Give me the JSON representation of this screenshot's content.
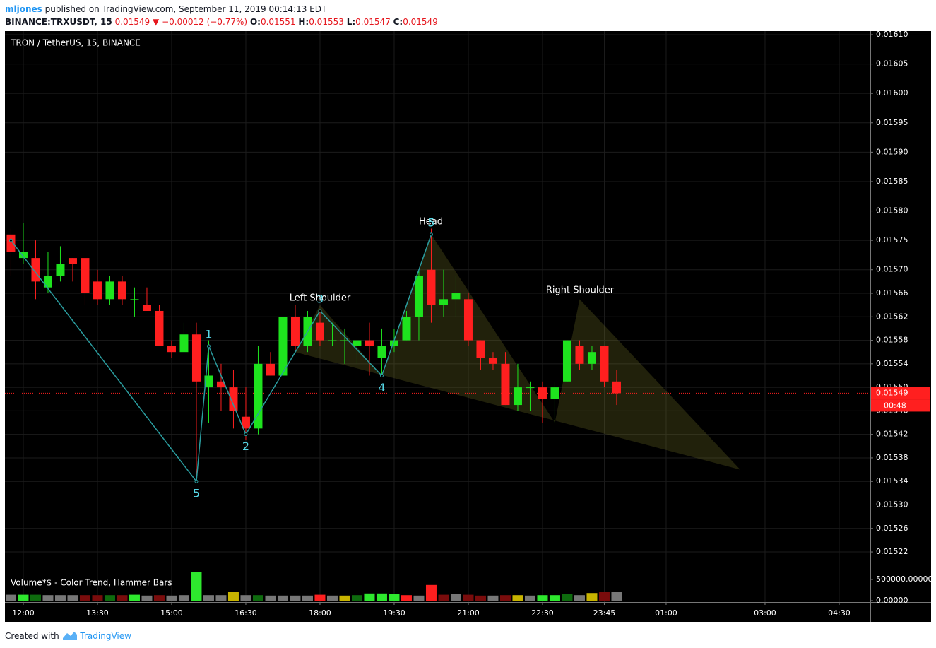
{
  "header": {
    "author": "mljones",
    "published": "published on TradingView.com, September 11, 2019 00:14:13 EDT",
    "symbol": "BINANCE:TRXUSDT, 15",
    "last": "0.01549",
    "arrow": "▼",
    "change": "−0.00012 (−0.77%)",
    "ohlc": [
      {
        "label": "O:",
        "value": "0.01551"
      },
      {
        "label": "H:",
        "value": "0.01553"
      },
      {
        "label": "L:",
        "value": "0.01547"
      },
      {
        "label": "C:",
        "value": "0.01549"
      }
    ]
  },
  "footer": {
    "text": "Created with",
    "brand": "TradingView"
  },
  "chart_data": {
    "type": "candlestick",
    "title": "TRON / TetherUS, 15, BINANCE",
    "up_color": "#1ee31e",
    "down_color": "#ff1f1f",
    "grid": true,
    "x": [
      11.75,
      12,
      12.25,
      12.5,
      12.75,
      13,
      13.25,
      13.5,
      13.75,
      14,
      14.25,
      14.5,
      14.75,
      15,
      15.25,
      15.5,
      15.75,
      16,
      16.25,
      16.5,
      16.75,
      17,
      17.25,
      17.5,
      17.75,
      18,
      18.25,
      18.5,
      18.75,
      19,
      19.25,
      19.5,
      19.75,
      20,
      20.25,
      20.5,
      20.75,
      21,
      21.25,
      21.5,
      21.75,
      22,
      22.25,
      22.5,
      22.75,
      23,
      23.25,
      23.5,
      23.75,
      24
    ],
    "open": [
      0.01576,
      0.01572,
      0.01572,
      0.01567,
      0.01569,
      0.01572,
      0.01572,
      0.01568,
      0.01565,
      0.01568,
      0.01565,
      0.01564,
      0.01563,
      0.01557,
      0.01556,
      0.01559,
      0.0155,
      0.01551,
      0.0155,
      0.01545,
      0.01543,
      0.01554,
      0.01552,
      0.01562,
      0.01557,
      0.01561,
      0.01558,
      0.01558,
      0.01557,
      0.01558,
      0.01555,
      0.01557,
      0.01558,
      0.01562,
      0.0157,
      0.01564,
      0.01565,
      0.01565,
      0.01558,
      0.01555,
      0.01554,
      0.01547,
      0.0155,
      0.0155,
      0.01548,
      0.01551,
      0.01557,
      0.01554,
      0.01557,
      0.01551
    ],
    "high": [
      0.01577,
      0.01578,
      0.01575,
      0.01573,
      0.01574,
      0.01572,
      0.01572,
      0.0157,
      0.01569,
      0.01569,
      0.01567,
      0.01567,
      0.01564,
      0.01558,
      0.01561,
      0.01561,
      0.01558,
      0.01554,
      0.01553,
      0.0155,
      0.01557,
      0.01556,
      0.01562,
      0.01564,
      0.01563,
      0.01563,
      0.01561,
      0.0156,
      0.01558,
      0.01561,
      0.0156,
      0.0156,
      0.01563,
      0.0157,
      0.01577,
      0.0157,
      0.01569,
      0.01566,
      0.01558,
      0.01556,
      0.01556,
      0.01554,
      0.01551,
      0.01551,
      0.01551,
      0.01558,
      0.01558,
      0.01557,
      0.01557,
      0.01553
    ],
    "low": [
      0.01569,
      0.01571,
      0.01565,
      0.01566,
      0.01568,
      0.01568,
      0.01564,
      0.01564,
      0.01564,
      0.01564,
      0.01562,
      0.01563,
      0.01557,
      0.01555,
      0.01556,
      0.01534,
      0.01544,
      0.01546,
      0.01543,
      0.01541,
      0.01542,
      0.01552,
      0.01552,
      0.01556,
      0.01556,
      0.01557,
      0.01557,
      0.01554,
      0.01554,
      0.01552,
      0.01552,
      0.01556,
      0.01558,
      0.01558,
      0.01561,
      0.01562,
      0.01562,
      0.01557,
      0.01553,
      0.01553,
      0.01547,
      0.01546,
      0.01546,
      0.01544,
      0.01544,
      0.01551,
      0.01553,
      0.01553,
      0.0155,
      0.01547
    ],
    "close": [
      0.01573,
      0.01573,
      0.01568,
      0.01569,
      0.01571,
      0.01571,
      0.01566,
      0.01565,
      0.01568,
      0.01565,
      0.01565,
      0.01563,
      0.01557,
      0.01556,
      0.01559,
      0.01551,
      0.01552,
      0.0155,
      0.01546,
      0.01543,
      0.01554,
      0.01552,
      0.01562,
      0.01557,
      0.01562,
      0.01558,
      0.01558,
      0.01558,
      0.01558,
      0.01557,
      0.01557,
      0.01558,
      0.01562,
      0.01569,
      0.01564,
      0.01565,
      0.01566,
      0.01558,
      0.01555,
      0.01554,
      0.01547,
      0.0155,
      0.0155,
      0.01548,
      0.0155,
      0.01558,
      0.01554,
      0.01556,
      0.01551,
      0.01549
    ],
    "xlim": [
      11.629,
      29.129
    ],
    "ylim": [
      0.01519,
      0.016106
    ],
    "xticks": [
      {
        "value": 12,
        "label": "12:00"
      },
      {
        "value": 13.5,
        "label": "13:30"
      },
      {
        "value": 15,
        "label": "15:00"
      },
      {
        "value": 16.5,
        "label": "16:30"
      },
      {
        "value": 18,
        "label": "18:00"
      },
      {
        "value": 19.5,
        "label": "19:30"
      },
      {
        "value": 21,
        "label": "21:00"
      },
      {
        "value": 22.5,
        "label": "22:30"
      },
      {
        "value": 23.75,
        "label": "23:45"
      },
      {
        "value": 25,
        "label": "01:00"
      },
      {
        "value": 27,
        "label": "03:00"
      },
      {
        "value": 28.5,
        "label": "04:30"
      }
    ],
    "yticks": [
      {
        "value": 0.0161,
        "label": "0.01610"
      },
      {
        "value": 0.01605,
        "label": "0.01605"
      },
      {
        "value": 0.016,
        "label": "0.01600"
      },
      {
        "value": 0.01595,
        "label": "0.01595"
      },
      {
        "value": 0.0159,
        "label": "0.01590"
      },
      {
        "value": 0.01585,
        "label": "0.01585"
      },
      {
        "value": 0.0158,
        "label": "0.01580"
      },
      {
        "value": 0.01575,
        "label": "0.01575"
      },
      {
        "value": 0.0157,
        "label": "0.01570"
      },
      {
        "value": 0.01566,
        "label": "0.01566"
      },
      {
        "value": 0.01562,
        "label": "0.01562"
      },
      {
        "value": 0.01558,
        "label": "0.01558"
      },
      {
        "value": 0.01554,
        "label": "0.01554"
      },
      {
        "value": 0.0155,
        "label": "0.01550"
      },
      {
        "value": 0.01546,
        "label": "0.01546"
      },
      {
        "value": 0.01542,
        "label": "0.01542"
      },
      {
        "value": 0.01538,
        "label": "0.01538"
      },
      {
        "value": 0.01534,
        "label": "0.01534"
      },
      {
        "value": 0.0153,
        "label": "0.01530"
      },
      {
        "value": 0.01526,
        "label": "0.01526"
      },
      {
        "value": 0.01522,
        "label": "0.01522"
      }
    ],
    "last_price": {
      "value": 0.01549,
      "label": "0.01549",
      "countdown": "00:48",
      "color": "#ff1f1f"
    },
    "zigzag": {
      "color": "#2a9d9f",
      "label_color": "#56d7e6",
      "x": [
        11.75,
        15.5,
        15.75,
        16.5,
        18,
        19.25,
        20.25
      ],
      "y": [
        0.01575,
        0.01534,
        0.01557,
        0.01542,
        0.01563,
        0.01552,
        0.01576
      ],
      "labels": [
        null,
        "5",
        "1",
        "2",
        "3",
        "4",
        "5"
      ]
    },
    "pattern": {
      "color": "rgba(120,120,40,0.28)",
      "x": [
        17.5,
        18,
        19.25,
        20.25,
        22.75,
        23.25,
        26.5
      ],
      "y": [
        0.01556,
        0.01564,
        0.01552,
        0.01576,
        0.01544,
        0.01565,
        0.01536
      ],
      "annotations": [
        "Left Shoulder",
        "Head",
        "Right Shoulder"
      ]
    },
    "volume": {
      "title": "Volume*$ - Color Trend, Hammer Bars",
      "ylim": [
        0,
        700000
      ],
      "yticks": [
        {
          "value": 500000,
          "label": "500000.00000"
        },
        {
          "value": 0,
          "label": "0.00000"
        }
      ],
      "values": [
        140000,
        140000,
        140000,
        130000,
        130000,
        130000,
        130000,
        130000,
        130000,
        130000,
        140000,
        120000,
        130000,
        120000,
        130000,
        670000,
        130000,
        130000,
        200000,
        130000,
        130000,
        120000,
        120000,
        120000,
        120000,
        140000,
        120000,
        120000,
        130000,
        170000,
        170000,
        150000,
        130000,
        120000,
        370000,
        140000,
        160000,
        140000,
        120000,
        120000,
        130000,
        130000,
        120000,
        130000,
        130000,
        150000,
        130000,
        180000,
        200000,
        200000
      ],
      "colors": [
        "#777",
        "#2ee82e",
        "#0e6b0e",
        "#777",
        "#777",
        "#777",
        "#7a0c0c",
        "#7a0c0c",
        "#0e6b0e",
        "#7a0c0c",
        "#2ee82e",
        "#777",
        "#7a0c0c",
        "#777",
        "#777",
        "#2ee82e",
        "#777",
        "#777",
        "#c8b400",
        "#777",
        "#0e6b0e",
        "#777",
        "#777",
        "#777",
        "#777",
        "#ff1f1f",
        "#777",
        "#c8b400",
        "#0e6b0e",
        "#2ee82e",
        "#2ee82e",
        "#2ee82e",
        "#ff1f1f",
        "#777",
        "#ff1f1f",
        "#7a0c0c",
        "#777",
        "#7a0c0c",
        "#7a0c0c",
        "#777",
        "#7a0c0c",
        "#c8b400",
        "#777",
        "#2ee82e",
        "#2ee82e",
        "#0e6b0e",
        "#777",
        "#c8b400",
        "#7a0c0c",
        "#777"
      ]
    }
  }
}
